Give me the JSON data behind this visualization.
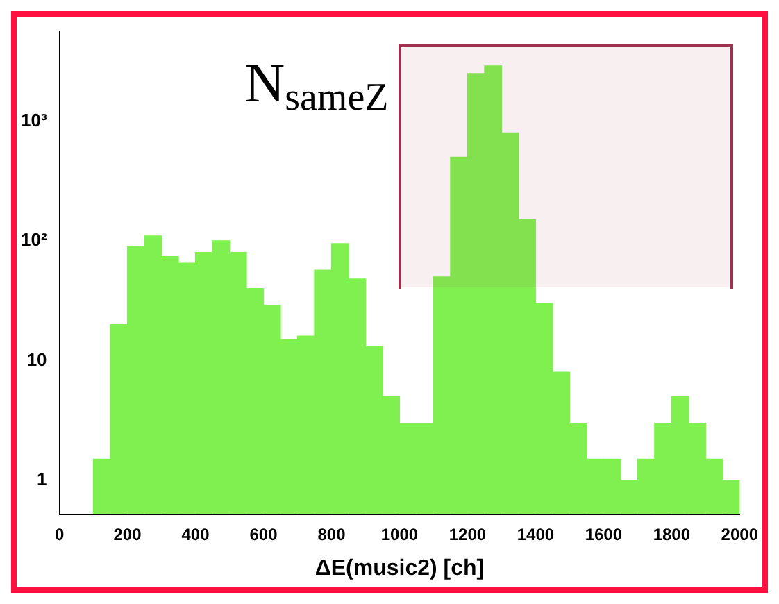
{
  "chart_data": {
    "type": "histogram",
    "xlabel": "ΔE(music2) [ch]",
    "bins": [
      100,
      150,
      200,
      250,
      300,
      350,
      400,
      450,
      500,
      550,
      600,
      650,
      700,
      750,
      800,
      850,
      900,
      950,
      1000,
      1050,
      1100,
      1150,
      1200,
      1250,
      1300,
      1350,
      1400,
      1450,
      1500,
      1550,
      1600,
      1650,
      1700,
      1750,
      1800,
      1850,
      1900,
      1950,
      2000
    ],
    "values": [
      1.5,
      20,
      90,
      110,
      74,
      65,
      80,
      100,
      80,
      40,
      29,
      15,
      16,
      57,
      95,
      48,
      13,
      5,
      3,
      3,
      50,
      500,
      2500,
      2900,
      800,
      150,
      30,
      8,
      3,
      1.5,
      1.5,
      1,
      1.5,
      3,
      5,
      3,
      1.5,
      1
    ],
    "color": "#80f050",
    "xlim": [
      0,
      2000
    ],
    "xticks": [
      0,
      200,
      400,
      600,
      800,
      1000,
      1200,
      1400,
      1600,
      1800,
      2000
    ],
    "ylim": [
      0.52,
      5600
    ],
    "log": true,
    "yticks": [
      1,
      10,
      {
        "value": 100,
        "label": "10²"
      },
      {
        "value": 1000,
        "label": "10³"
      }
    ],
    "grid": false,
    "legend": false,
    "bands": [
      {
        "axis": "x",
        "from": 1000,
        "to": 1970,
        "label": "N$_{sameZ}$",
        "color": "#a03050"
      }
    ]
  }
}
